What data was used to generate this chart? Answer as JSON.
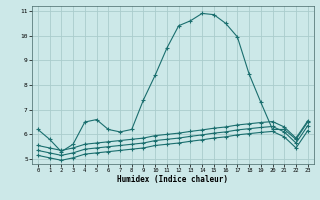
{
  "title": "",
  "xlabel": "Humidex (Indice chaleur)",
  "bg_color": "#cce8e8",
  "grid_color": "#aacccc",
  "line_color": "#1a6e6e",
  "xlim": [
    -0.5,
    23.5
  ],
  "ylim": [
    4.8,
    11.2
  ],
  "yticks": [
    5,
    6,
    7,
    8,
    9,
    10,
    11
  ],
  "xticks": [
    0,
    1,
    2,
    3,
    4,
    5,
    6,
    7,
    8,
    9,
    10,
    11,
    12,
    13,
    14,
    15,
    16,
    17,
    18,
    19,
    20,
    21,
    22,
    23
  ],
  "series": [
    {
      "x": [
        0,
        1,
        2,
        3,
        4,
        5,
        6,
        7,
        8,
        9,
        10,
        11,
        12,
        13,
        14,
        15,
        16,
        17,
        18,
        19,
        20,
        21,
        22,
        23
      ],
      "y": [
        6.2,
        5.8,
        5.3,
        5.6,
        6.5,
        6.6,
        6.2,
        6.1,
        6.2,
        7.4,
        8.4,
        9.5,
        10.4,
        10.6,
        10.9,
        10.85,
        10.5,
        9.95,
        8.45,
        7.3,
        6.2,
        6.2,
        5.8,
        6.5
      ]
    },
    {
      "x": [
        0,
        1,
        2,
        3,
        4,
        5,
        6,
        7,
        8,
        9,
        10,
        11,
        12,
        13,
        14,
        15,
        16,
        17,
        18,
        19,
        20,
        21,
        22,
        23
      ],
      "y": [
        5.55,
        5.45,
        5.35,
        5.45,
        5.6,
        5.65,
        5.7,
        5.75,
        5.8,
        5.85,
        5.95,
        6.0,
        6.05,
        6.12,
        6.18,
        6.25,
        6.3,
        6.38,
        6.43,
        6.48,
        6.52,
        6.3,
        5.85,
        6.55
      ]
    },
    {
      "x": [
        0,
        1,
        2,
        3,
        4,
        5,
        6,
        7,
        8,
        9,
        10,
        11,
        12,
        13,
        14,
        15,
        16,
        17,
        18,
        19,
        20,
        21,
        22,
        23
      ],
      "y": [
        5.35,
        5.25,
        5.15,
        5.25,
        5.4,
        5.45,
        5.5,
        5.55,
        5.6,
        5.65,
        5.75,
        5.8,
        5.85,
        5.92,
        5.98,
        6.05,
        6.1,
        6.18,
        6.23,
        6.28,
        6.32,
        6.1,
        5.65,
        6.35
      ]
    },
    {
      "x": [
        0,
        1,
        2,
        3,
        4,
        5,
        6,
        7,
        8,
        9,
        10,
        11,
        12,
        13,
        14,
        15,
        16,
        17,
        18,
        19,
        20,
        21,
        22,
        23
      ],
      "y": [
        5.15,
        5.05,
        4.95,
        5.05,
        5.2,
        5.25,
        5.3,
        5.35,
        5.4,
        5.45,
        5.55,
        5.6,
        5.65,
        5.72,
        5.78,
        5.85,
        5.9,
        5.98,
        6.03,
        6.08,
        6.12,
        5.9,
        5.45,
        6.15
      ]
    }
  ]
}
